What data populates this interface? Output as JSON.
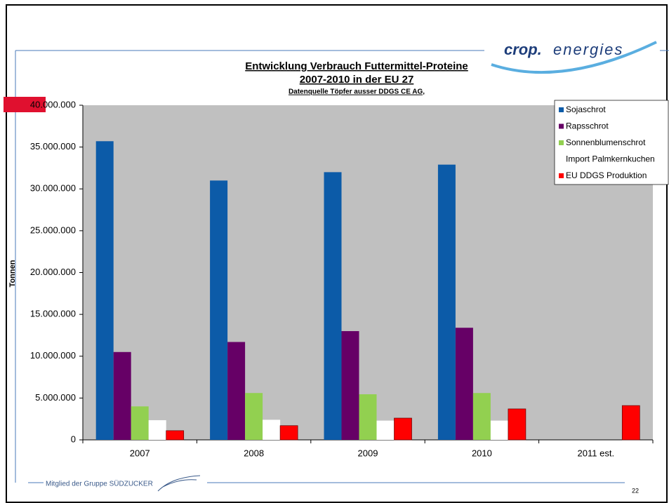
{
  "chart_data": {
    "type": "bar",
    "title": "Entwicklung Verbrauch Futtermittel-Proteine",
    "subtitle": "2007-2010 in der EU 27",
    "source": "Datenquelle  Töpfer ausser DDGS CE AG,",
    "ylabel": "Tonnen",
    "categories": [
      "2007",
      "2008",
      "2009",
      "2010",
      "2011 est."
    ],
    "series": [
      {
        "name": "Sojaschrot",
        "color": "#0c5ba8",
        "values": [
          35700000,
          31000000,
          32000000,
          32900000,
          null
        ]
      },
      {
        "name": "Rapsschrot",
        "color": "#660066",
        "values": [
          10500000,
          11700000,
          13000000,
          13400000,
          null
        ]
      },
      {
        "name": "Sonnenblumenschrot",
        "color": "#92d050",
        "values": [
          4000000,
          5600000,
          5450000,
          5600000,
          null
        ]
      },
      {
        "name": "Import Palmkernkuchen",
        "color": "#ffffff",
        "values": [
          2350000,
          2400000,
          2300000,
          2300000,
          null
        ]
      },
      {
        "name": "EU DDGS Produktion",
        "color": "#ff0000",
        "values": [
          1100000,
          1700000,
          2600000,
          3700000,
          4100000
        ]
      }
    ],
    "ylim": [
      0,
      40000000
    ],
    "yticks": [
      0,
      {
        "value": 5000000,
        "label": "5.000.000"
      },
      {
        "value": 10000000,
        "label": "10.000.000"
      },
      {
        "value": 15000000,
        "label": "15.000.000"
      },
      {
        "value": 20000000,
        "label": "20.000.000"
      },
      {
        "value": 25000000,
        "label": "25.000.000"
      },
      {
        "value": 30000000,
        "label": "30.000.000"
      },
      {
        "value": 35000000,
        "label": "35.000.000"
      },
      {
        "value": 40000000,
        "label": "40.000.000"
      }
    ],
    "grid": false,
    "legend": "upper right"
  },
  "slide": {
    "logo_1": "crop.",
    "logo_2": "energies",
    "footer": "Mitglied der Gruppe  SÜDZUCKER",
    "page_number": "22"
  }
}
